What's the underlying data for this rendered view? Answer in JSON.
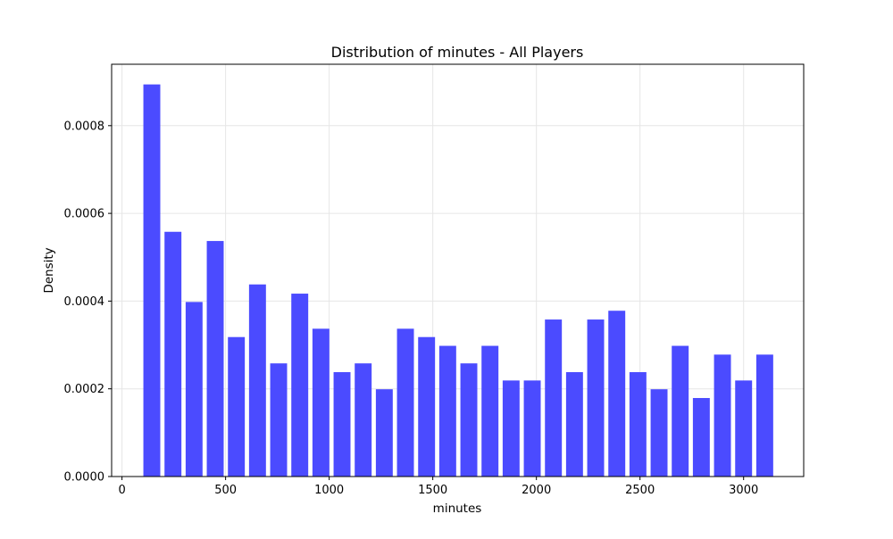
{
  "chart_data": {
    "type": "bar",
    "title": "Distribution of minutes - All Players",
    "xlabel": "minutes",
    "ylabel": "Density",
    "xlim": [
      -50,
      3290
    ],
    "ylim": [
      0,
      0.00094
    ],
    "xticks": [
      0,
      500,
      1000,
      1500,
      2000,
      2500,
      3000
    ],
    "xtick_labels": [
      "0",
      "500",
      "1000",
      "1500",
      "2000",
      "2500",
      "3000"
    ],
    "yticks": [
      0,
      0.0002,
      0.0004,
      0.0006,
      0.0008
    ],
    "ytick_labels": [
      "0.0000",
      "0.0002",
      "0.0004",
      "0.0006",
      "0.0008"
    ],
    "grid": true,
    "bar_color": "#4b4bff",
    "bin_width": 102,
    "bar_width_fraction": 0.8,
    "x": [
      144,
      246,
      348,
      450,
      552,
      654,
      756,
      858,
      960,
      1062,
      1164,
      1266,
      1368,
      1470,
      1572,
      1674,
      1776,
      1878,
      1980,
      2082,
      2184,
      2286,
      2388,
      2490,
      2592,
      2694,
      2796,
      2898,
      3000,
      3102
    ],
    "values": [
      0.000894,
      0.000558,
      0.000398,
      0.000537,
      0.000318,
      0.000438,
      0.000258,
      0.000417,
      0.000337,
      0.000238,
      0.000258,
      0.000199,
      0.000337,
      0.000318,
      0.000298,
      0.000258,
      0.000298,
      0.000219,
      0.000219,
      0.000358,
      0.000238,
      0.000358,
      0.000378,
      0.000238,
      0.000199,
      0.000298,
      0.000179,
      0.000278,
      0.000219,
      0.000278
    ]
  }
}
